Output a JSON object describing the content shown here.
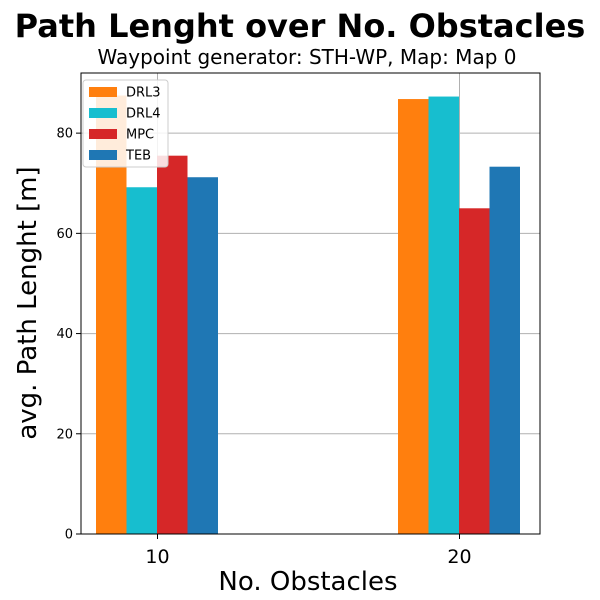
{
  "chart_data": {
    "type": "bar",
    "title": "Path Lenght over No. Obstacles",
    "subtitle": "Waypoint generator: STH-WP, Map: Map 0",
    "xlabel": "No. Obstacles",
    "ylabel": "avg. Path Lenght [m]",
    "categories": [
      "10",
      "20"
    ],
    "ylim": [
      0,
      92
    ],
    "yticks": [
      0,
      20,
      40,
      60,
      80
    ],
    "grid": true,
    "legend_position": "top-left",
    "series": [
      {
        "name": "DRL3",
        "color": "#ff7f0e",
        "values": [
          87.5,
          86.8
        ]
      },
      {
        "name": "DRL4",
        "color": "#17becf",
        "values": [
          69.2,
          87.3
        ]
      },
      {
        "name": "MPC",
        "color": "#d62728",
        "values": [
          75.5,
          65.0
        ]
      },
      {
        "name": "TEB",
        "color": "#1f77b4",
        "values": [
          71.2,
          73.3
        ]
      }
    ]
  }
}
